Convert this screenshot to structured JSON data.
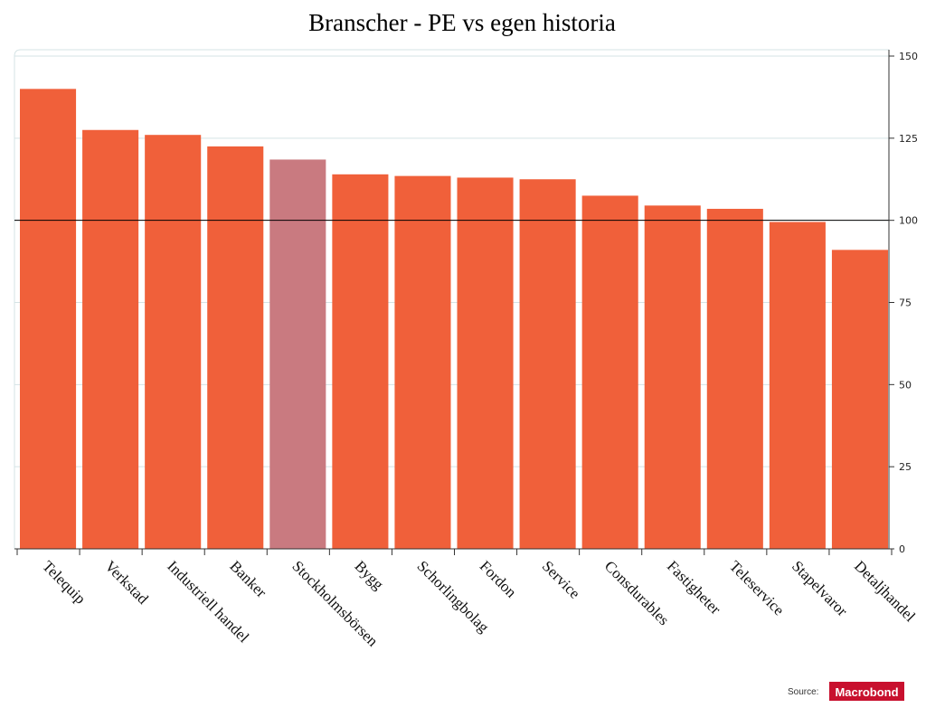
{
  "chart_data": {
    "type": "bar",
    "title": "Branscher - PE vs egen historia",
    "categories": [
      "Telequip",
      "Verkstad",
      "Industriell handel",
      "Banker",
      "Stockholmsbörsen",
      "Bygg",
      "Schorlingbolag",
      "Fordon",
      "Service",
      "Consdurables",
      "Fastigheter",
      "Teleservice",
      "Stapelvaror",
      "Detaljhandel"
    ],
    "values": [
      140,
      127.5,
      126,
      122.5,
      118.5,
      114,
      113.5,
      113,
      112.5,
      107.5,
      104.5,
      103.5,
      99.5,
      91
    ],
    "highlight_category": "Stockholmsbörsen",
    "ylim": [
      0,
      150
    ],
    "yticks": [
      0,
      25,
      50,
      75,
      100,
      125,
      150
    ],
    "y_axis_side": "right",
    "reference_line": 100,
    "grid": true,
    "xlabel": "",
    "ylabel": "",
    "colors": {
      "bar": "#f0603a",
      "highlight": "#c97a80",
      "grid": "#d5e3e5",
      "reference": "#000000"
    }
  },
  "source": {
    "label": "Source:",
    "logo_text": "Macrobond",
    "logo_color": "#c8102e"
  }
}
